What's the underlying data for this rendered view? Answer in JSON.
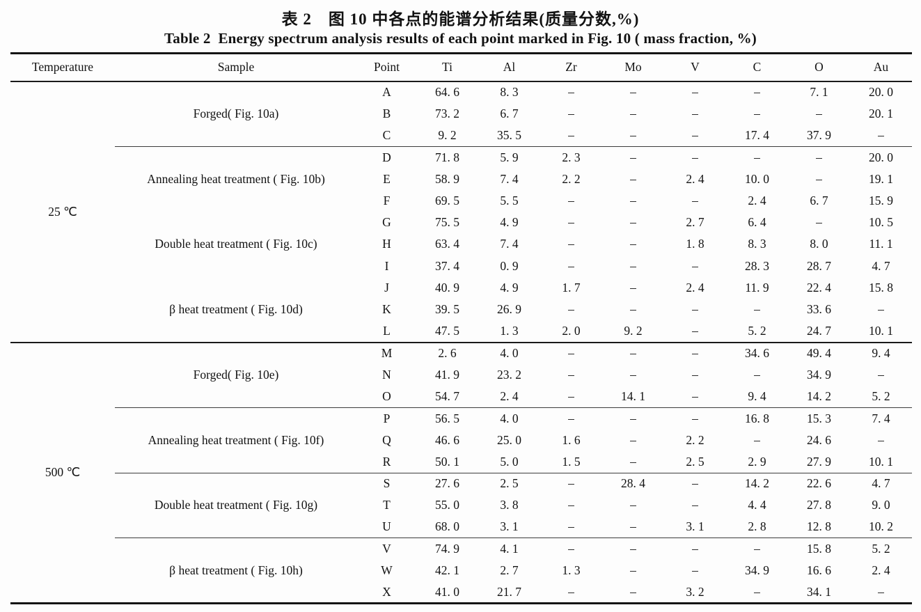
{
  "captions": {
    "zh": "表 2　图 10 中各点的能谱分析结果(质量分数,%)",
    "en": "Table 2  Energy spectrum analysis results of each point marked in Fig. 10 ( mass fraction, %)"
  },
  "table": {
    "headers": [
      "Temperature",
      "Sample",
      "Point",
      "Ti",
      "Al",
      "Zr",
      "Mo",
      "V",
      "C",
      "O",
      "Au"
    ],
    "temperature_blocks": [
      {
        "temperature": "25 ℃",
        "divider_after": true,
        "groups": [
          {
            "sample": "Forged( Fig. 10a)",
            "divider_after": true,
            "rows": [
              {
                "point": "A",
                "values": [
                  "64. 6",
                  "8. 3",
                  "–",
                  "–",
                  "–",
                  "–",
                  "7. 1",
                  "20. 0"
                ]
              },
              {
                "point": "B",
                "values": [
                  "73. 2",
                  "6. 7",
                  "–",
                  "–",
                  "–",
                  "–",
                  "–",
                  "20. 1"
                ]
              },
              {
                "point": "C",
                "values": [
                  "9. 2",
                  "35. 5",
                  "–",
                  "–",
                  "–",
                  "17. 4",
                  "37. 9",
                  "–"
                ]
              }
            ]
          },
          {
            "sample": "Annealing heat treatment ( Fig. 10b)",
            "divider_after": false,
            "rows": [
              {
                "point": "D",
                "values": [
                  "71. 8",
                  "5. 9",
                  "2. 3",
                  "–",
                  "–",
                  "–",
                  "–",
                  "20. 0"
                ]
              },
              {
                "point": "E",
                "values": [
                  "58. 9",
                  "7. 4",
                  "2. 2",
                  "–",
                  "2. 4",
                  "10. 0",
                  "–",
                  "19. 1"
                ]
              },
              {
                "point": "F",
                "values": [
                  "69. 5",
                  "5. 5",
                  "–",
                  "–",
                  "–",
                  "2. 4",
                  "6. 7",
                  "15. 9"
                ]
              }
            ]
          },
          {
            "sample": "Double heat treatment ( Fig. 10c)",
            "divider_after": false,
            "rows": [
              {
                "point": "G",
                "values": [
                  "75. 5",
                  "4. 9",
                  "–",
                  "–",
                  "2. 7",
                  "6. 4",
                  "–",
                  "10. 5"
                ]
              },
              {
                "point": "H",
                "values": [
                  "63. 4",
                  "7. 4",
                  "–",
                  "–",
                  "1. 8",
                  "8. 3",
                  "8. 0",
                  "11. 1"
                ]
              },
              {
                "point": "I",
                "values": [
                  "37. 4",
                  "0. 9",
                  "–",
                  "–",
                  "–",
                  "28. 3",
                  "28. 7",
                  "4. 7"
                ]
              }
            ]
          },
          {
            "sample": "β heat treatment ( Fig. 10d)",
            "divider_after": false,
            "rows": [
              {
                "point": "J",
                "values": [
                  "40. 9",
                  "4. 9",
                  "1. 7",
                  "–",
                  "2. 4",
                  "11. 9",
                  "22. 4",
                  "15. 8"
                ]
              },
              {
                "point": "K",
                "values": [
                  "39. 5",
                  "26. 9",
                  "–",
                  "–",
                  "–",
                  "–",
                  "33. 6",
                  "–"
                ]
              },
              {
                "point": "L",
                "values": [
                  "47. 5",
                  "1. 3",
                  "2. 0",
                  "9. 2",
                  "–",
                  "5. 2",
                  "24. 7",
                  "10. 1"
                ]
              }
            ]
          }
        ]
      },
      {
        "temperature": "500 ℃",
        "divider_after": false,
        "groups": [
          {
            "sample": "Forged( Fig. 10e)",
            "divider_after": true,
            "rows": [
              {
                "point": "M",
                "values": [
                  "2. 6",
                  "4. 0",
                  "–",
                  "–",
                  "–",
                  "34. 6",
                  "49. 4",
                  "9. 4"
                ]
              },
              {
                "point": "N",
                "values": [
                  "41. 9",
                  "23. 2",
                  "–",
                  "–",
                  "–",
                  "–",
                  "34. 9",
                  "–"
                ]
              },
              {
                "point": "O",
                "values": [
                  "54. 7",
                  "2. 4",
                  "–",
                  "14. 1",
                  "–",
                  "9. 4",
                  "14. 2",
                  "5. 2"
                ]
              }
            ]
          },
          {
            "sample": "Annealing heat treatment ( Fig. 10f)",
            "divider_after": true,
            "rows": [
              {
                "point": "P",
                "values": [
                  "56. 5",
                  "4. 0",
                  "–",
                  "–",
                  "–",
                  "16. 8",
                  "15. 3",
                  "7. 4"
                ]
              },
              {
                "point": "Q",
                "values": [
                  "46. 6",
                  "25. 0",
                  "1. 6",
                  "–",
                  "2. 2",
                  "–",
                  "24. 6",
                  "–"
                ]
              },
              {
                "point": "R",
                "values": [
                  "50. 1",
                  "5. 0",
                  "1. 5",
                  "–",
                  "2. 5",
                  "2. 9",
                  "27. 9",
                  "10. 1"
                ]
              }
            ]
          },
          {
            "sample": "Double heat treatment ( Fig. 10g)",
            "divider_after": true,
            "rows": [
              {
                "point": "S",
                "values": [
                  "27. 6",
                  "2. 5",
                  "–",
                  "28. 4",
                  "–",
                  "14. 2",
                  "22. 6",
                  "4. 7"
                ]
              },
              {
                "point": "T",
                "values": [
                  "55. 0",
                  "3. 8",
                  "–",
                  "–",
                  "–",
                  "4. 4",
                  "27. 8",
                  "9. 0"
                ]
              },
              {
                "point": "U",
                "values": [
                  "68. 0",
                  "3. 1",
                  "–",
                  "–",
                  "3. 1",
                  "2. 8",
                  "12. 8",
                  "10. 2"
                ]
              }
            ]
          },
          {
            "sample": "β heat treatment ( Fig. 10h)",
            "divider_after": false,
            "rows": [
              {
                "point": "V",
                "values": [
                  "74. 9",
                  "4. 1",
                  "–",
                  "–",
                  "–",
                  "–",
                  "15. 8",
                  "5. 2"
                ]
              },
              {
                "point": "W",
                "values": [
                  "42. 1",
                  "2. 7",
                  "1. 3",
                  "–",
                  "–",
                  "34. 9",
                  "16. 6",
                  "2. 4"
                ]
              },
              {
                "point": "X",
                "values": [
                  "41. 0",
                  "21. 7",
                  "–",
                  "–",
                  "3. 2",
                  "–",
                  "34. 1",
                  "–"
                ]
              }
            ]
          }
        ]
      }
    ]
  }
}
